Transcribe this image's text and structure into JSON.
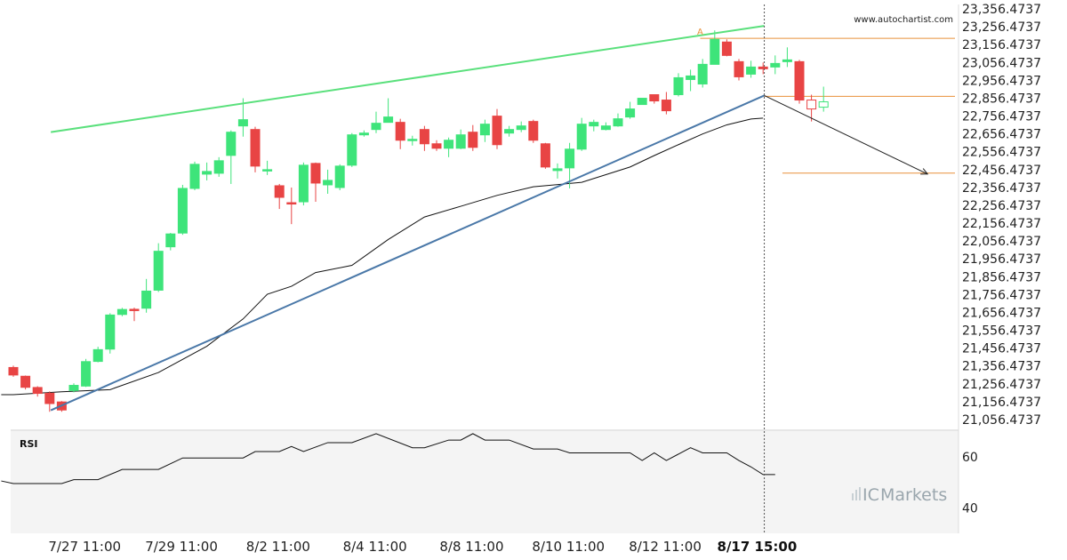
{
  "watermark": "www.autochartist.com",
  "brand": {
    "prefix": "IC",
    "name": "Markets",
    "bars_color": "#c8d0d4",
    "text_color": "#9aa6ad"
  },
  "colors": {
    "bull": "#3ee47a",
    "bear": "#e84444",
    "resistance": "#5ae07c",
    "support": "#4a78a8",
    "ma": "#111111",
    "level": "#e8913a",
    "projection": "#222222",
    "rsi": "#111111",
    "grid_bg": "#ffffff",
    "rsi_bg": "#f4f4f4",
    "separator": "#cccccc"
  },
  "chart_data": [
    {
      "type": "candlestick",
      "title": "",
      "ylim": [
        21036.4737,
        23376.4737
      ],
      "y_ticks": [
        "23,356.4737",
        "23,256.4737",
        "23,156.4737",
        "23,056.4737",
        "22,956.4737",
        "22,856.4737",
        "22,756.4737",
        "22,656.4737",
        "22,556.4737",
        "22,456.4737",
        "22,356.4737",
        "22,256.4737",
        "22,156.4737",
        "22,056.4737",
        "21,956.4737",
        "21,856.4737",
        "21,756.4737",
        "21,656.4737",
        "21,556.4737",
        "21,456.4737",
        "21,356.4737",
        "21,256.4737",
        "21,156.4737",
        "21,056.4737"
      ],
      "y_tick_values": [
        23356.4737,
        23256.4737,
        23156.4737,
        23056.4737,
        22956.4737,
        22856.4737,
        22756.4737,
        22656.4737,
        22556.4737,
        22456.4737,
        22356.4737,
        22256.4737,
        22156.4737,
        22056.4737,
        21956.4737,
        21856.4737,
        21756.4737,
        21656.4737,
        21556.4737,
        21456.4737,
        21356.4737,
        21256.4737,
        21156.4737,
        21056.4737
      ],
      "x_ticks": [
        {
          "label": "7/27 11:00",
          "index": 5.9,
          "bold": false
        },
        {
          "label": "7/29 11:00",
          "index": 13.9,
          "bold": false
        },
        {
          "label": "8/2 11:00",
          "index": 21.9,
          "bold": false
        },
        {
          "label": "8/4 11:00",
          "index": 29.9,
          "bold": false
        },
        {
          "label": "8/8 11:00",
          "index": 37.9,
          "bold": false
        },
        {
          "label": "8/10 11:00",
          "index": 45.9,
          "bold": false
        },
        {
          "label": "8/12 11:00",
          "index": 53.9,
          "bold": false
        },
        {
          "label": "8/17 15:00",
          "index": 61.5,
          "bold": true
        }
      ],
      "candles": [
        [
          21348,
          21306,
          21358,
          21296
        ],
        [
          21299,
          21237,
          21303,
          21225
        ],
        [
          21236,
          21203,
          21243,
          21185
        ],
        [
          21204,
          21146,
          21214,
          21100
        ],
        [
          21155,
          21110,
          21160,
          21100
        ],
        [
          21219,
          21248,
          21259,
          21209
        ],
        [
          21244,
          21381,
          21396,
          21239
        ],
        [
          21382,
          21448,
          21464,
          21377
        ],
        [
          21451,
          21642,
          21652,
          21426
        ],
        [
          21645,
          21673,
          21682,
          21635
        ],
        [
          21674,
          21671,
          21683,
          21608
        ],
        [
          21680,
          21776,
          21844,
          21655
        ],
        [
          21781,
          21999,
          22044,
          21771
        ],
        [
          22024,
          22096,
          22102,
          22004
        ],
        [
          22101,
          22351,
          22371,
          22091
        ],
        [
          22351,
          22486,
          22501,
          22341
        ],
        [
          22431,
          22446,
          22496,
          22396
        ],
        [
          22436,
          22506,
          22526,
          22416
        ],
        [
          22536,
          22666,
          22676,
          22376
        ],
        [
          22701,
          22736,
          22856,
          22641
        ],
        [
          22681,
          22476,
          22696,
          22441
        ],
        [
          22456,
          22456,
          22506,
          22426
        ],
        [
          22366,
          22301,
          22376,
          22236
        ],
        [
          22271,
          22266,
          22356,
          22151
        ],
        [
          22276,
          22481,
          22496,
          22256
        ],
        [
          22491,
          22381,
          22496,
          22276
        ],
        [
          22371,
          22396,
          22456,
          22321
        ],
        [
          22356,
          22476,
          22486,
          22341
        ],
        [
          22481,
          22651,
          22661,
          22471
        ],
        [
          22651,
          22661,
          22676,
          22641
        ],
        [
          22681,
          22716,
          22781,
          22661
        ],
        [
          22721,
          22751,
          22856,
          22721
        ],
        [
          22721,
          22621,
          22741,
          22571
        ],
        [
          22621,
          22626,
          22646,
          22591
        ],
        [
          22681,
          22601,
          22701,
          22561
        ],
        [
          22601,
          22576,
          22621,
          22561
        ],
        [
          22576,
          22621,
          22636,
          22526
        ],
        [
          22576,
          22651,
          22681,
          22571
        ],
        [
          22666,
          22581,
          22706,
          22561
        ],
        [
          22651,
          22711,
          22736,
          22611
        ],
        [
          22756,
          22596,
          22796,
          22571
        ],
        [
          22661,
          22681,
          22701,
          22641
        ],
        [
          22681,
          22701,
          22726,
          22666
        ],
        [
          22726,
          22621,
          22736,
          22606
        ],
        [
          22601,
          22471,
          22606,
          22461
        ],
        [
          22451,
          22461,
          22491,
          22406
        ],
        [
          22466,
          22571,
          22606,
          22351
        ],
        [
          22571,
          22711,
          22746,
          22561
        ],
        [
          22701,
          22721,
          22736,
          22671
        ],
        [
          22681,
          22701,
          22721,
          22676
        ],
        [
          22701,
          22741,
          22771,
          22696
        ],
        [
          22751,
          22796,
          22836,
          22741
        ],
        [
          22821,
          22856,
          22851,
          22826
        ],
        [
          22876,
          22841,
          22876,
          22826
        ],
        [
          22846,
          22786,
          22891,
          22766
        ],
        [
          22876,
          22971,
          22996,
          22866
        ],
        [
          22961,
          22981,
          23016,
          22896
        ],
        [
          22936,
          23046,
          23076,
          22916
        ],
        [
          23046,
          23186,
          23236,
          23046
        ],
        [
          23171,
          23096,
          23186,
          23091
        ],
        [
          23061,
          22976,
          23076,
          22956
        ],
        [
          22991,
          23031,
          23066,
          22971
        ],
        [
          23031,
          23021,
          23056,
          22991
        ],
        [
          23031,
          23051,
          23096,
          22991
        ],
        [
          23061,
          23071,
          23141,
          23031
        ],
        [
          23061,
          22846,
          23071,
          22826
        ],
        [
          22846,
          22796,
          22876,
          22726
        ],
        [
          22806,
          22836,
          22921,
          22781
        ]
      ],
      "moving_average": [
        [
          -1,
          21196
        ],
        [
          0,
          21196
        ],
        [
          4,
          21212
        ],
        [
          8,
          21224
        ],
        [
          12,
          21320
        ],
        [
          16,
          21467
        ],
        [
          19,
          21620
        ],
        [
          21,
          21758
        ],
        [
          23,
          21803
        ],
        [
          25,
          21880
        ],
        [
          28,
          21920
        ],
        [
          31,
          22065
        ],
        [
          34,
          22191
        ],
        [
          37,
          22251
        ],
        [
          40,
          22312
        ],
        [
          43,
          22360
        ],
        [
          47,
          22385
        ],
        [
          51,
          22471
        ],
        [
          53,
          22535
        ],
        [
          55,
          22596
        ],
        [
          57,
          22656
        ],
        [
          59,
          22707
        ],
        [
          61,
          22740
        ],
        [
          62,
          22745
        ]
      ],
      "resistance_line": {
        "from": [
          3.1,
          22666.4737
        ],
        "to": [
          62.1,
          23261.4737
        ],
        "label": "A"
      },
      "support_line": {
        "from": [
          3.1,
          21108.4737
        ],
        "to": [
          62.1,
          22871.4737
        ]
      },
      "projection_line": {
        "from": [
          62.1,
          22871.4737
        ],
        "to": [
          75.6,
          22431.4737
        ]
      },
      "levels": [
        {
          "value": 23191.4737,
          "from_index": 56.8
        },
        {
          "value": 22866.4737,
          "from_index": 62.1
        },
        {
          "value": 22436.4737,
          "from_index": 63.6
        }
      ],
      "marker_index": 62.1
    },
    {
      "type": "line",
      "title": "RSI",
      "ylim": [
        30,
        70
      ],
      "y_ticks": [
        "60",
        "40"
      ],
      "y_tick_values": [
        60,
        40
      ],
      "series": [
        {
          "name": "",
          "points": [
            [
              -1,
              50.5
            ],
            [
              0,
              49.5
            ],
            [
              2,
              49.5
            ],
            [
              4,
              49.5
            ],
            [
              5,
              51
            ],
            [
              7,
              51
            ],
            [
              9,
              55
            ],
            [
              12,
              55
            ],
            [
              14,
              59.5
            ],
            [
              19,
              59.5
            ],
            [
              20,
              62
            ],
            [
              22,
              62
            ],
            [
              23,
              64
            ],
            [
              24,
              62
            ],
            [
              26,
              65.5
            ],
            [
              28,
              65.5
            ],
            [
              30,
              69
            ],
            [
              33,
              63.5
            ],
            [
              34,
              63.5
            ],
            [
              36,
              66.5
            ],
            [
              37,
              66.5
            ],
            [
              38,
              69
            ],
            [
              39,
              66.5
            ],
            [
              41,
              66.5
            ],
            [
              43,
              63
            ],
            [
              45,
              63
            ],
            [
              46,
              61.5
            ],
            [
              51,
              61.5
            ],
            [
              52,
              58.5
            ],
            [
              53,
              61.5
            ],
            [
              54,
              58.5
            ],
            [
              56,
              63.5
            ],
            [
              57,
              61.5
            ],
            [
              59,
              61.5
            ],
            [
              60,
              58.5
            ],
            [
              61,
              56
            ],
            [
              62,
              53
            ],
            [
              63,
              53
            ]
          ]
        }
      ]
    }
  ]
}
